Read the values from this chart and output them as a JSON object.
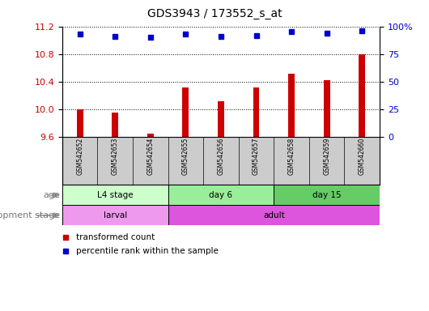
{
  "title": "GDS3943 / 173552_s_at",
  "samples": [
    "GSM542652",
    "GSM542653",
    "GSM542654",
    "GSM542655",
    "GSM542656",
    "GSM542657",
    "GSM542658",
    "GSM542659",
    "GSM542660"
  ],
  "transformed_count": [
    10.0,
    9.95,
    9.65,
    10.32,
    10.12,
    10.32,
    10.52,
    10.42,
    10.8
  ],
  "percentile_rank": [
    93,
    91,
    90,
    93,
    91,
    92,
    95,
    94,
    96
  ],
  "ylim_left": [
    9.6,
    11.2
  ],
  "ylim_right": [
    0,
    100
  ],
  "yticks_left": [
    9.6,
    10.0,
    10.4,
    10.8,
    11.2
  ],
  "yticks_right": [
    0,
    25,
    50,
    75,
    100
  ],
  "ytick_labels_right": [
    "0",
    "25",
    "50",
    "75",
    "100%"
  ],
  "bar_color": "#cc0000",
  "dot_color": "#0000cc",
  "age_groups": [
    {
      "label": "L4 stage",
      "start": 0,
      "end": 3,
      "color": "#ccffcc"
    },
    {
      "label": "day 6",
      "start": 3,
      "end": 6,
      "color": "#99ee99"
    },
    {
      "label": "day 15",
      "start": 6,
      "end": 9,
      "color": "#66cc66"
    }
  ],
  "dev_stage_groups": [
    {
      "label": "larval",
      "start": 0,
      "end": 3,
      "color": "#ee99ee"
    },
    {
      "label": "adult",
      "start": 3,
      "end": 9,
      "color": "#dd55dd"
    }
  ],
  "legend_items": [
    {
      "label": "transformed count",
      "color": "#cc0000"
    },
    {
      "label": "percentile rank within the sample",
      "color": "#0000cc"
    }
  ],
  "row_label_age": "age",
  "row_label_dev": "development stage",
  "bg_color": "#ffffff",
  "sample_bg_color": "#cccccc",
  "bar_width": 0.18
}
